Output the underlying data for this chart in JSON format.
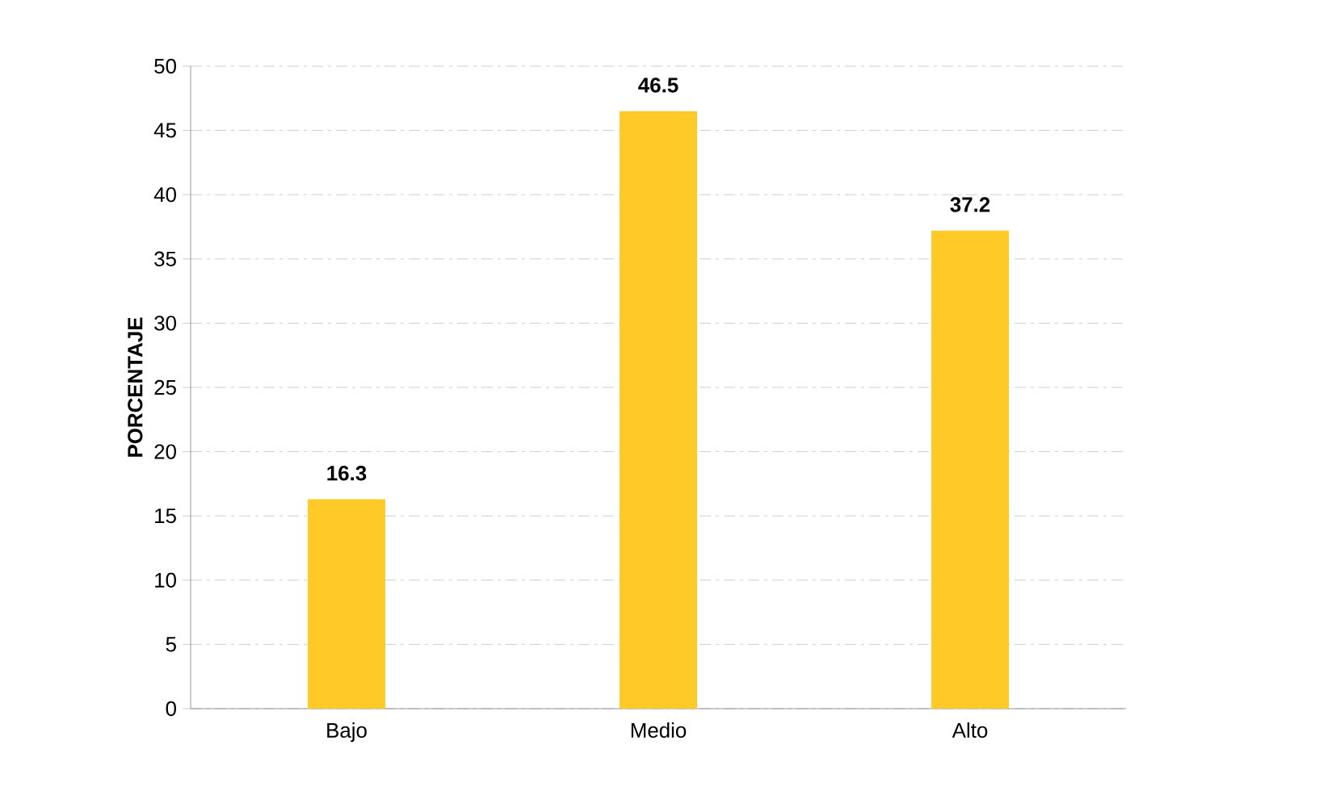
{
  "chart_data": {
    "type": "bar",
    "ylabel": "PORCENTAJE",
    "categories": [
      "Bajo",
      "Medio",
      "Alto"
    ],
    "values": [
      16.3,
      46.5,
      37.2
    ],
    "color": "#ffca28",
    "ylim": [
      0,
      50
    ],
    "yticks": [
      0,
      5,
      10,
      15,
      20,
      25,
      30,
      35,
      40,
      45,
      50
    ],
    "grid": "y",
    "data_labels": true
  }
}
